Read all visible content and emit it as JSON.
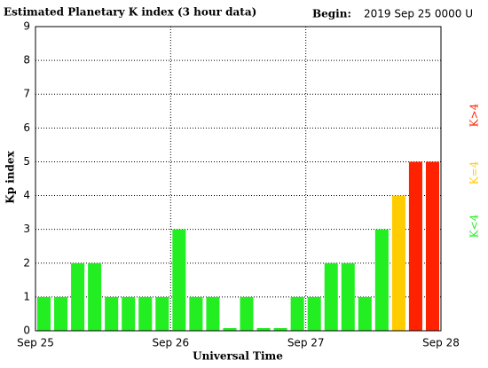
{
  "chart_data": {
    "type": "bar",
    "title": "Estimated Planetary K index (3 hour data)",
    "subtitle_label": "Begin:",
    "subtitle": "2019 Sep 25 0000 U",
    "y_label": "Kp index",
    "x_label": "Universal Time",
    "xlim": [
      0,
      24
    ],
    "xticks": [
      {
        "value": 0,
        "label": "Sep 25"
      },
      {
        "value": 8,
        "label": "Sep 26"
      },
      {
        "value": 16,
        "label": "Sep 27"
      },
      {
        "value": 24,
        "label": "Sep 28"
      }
    ],
    "ylim": [
      0,
      9
    ],
    "yticks": [
      0,
      1,
      2,
      3,
      4,
      5,
      6,
      7,
      8,
      9
    ],
    "grid": true,
    "series": [
      {
        "values": [
          1,
          1,
          2,
          2,
          1,
          1,
          1,
          1,
          3,
          1,
          1,
          0,
          1,
          0,
          0,
          1,
          1,
          2,
          2,
          1,
          3,
          4,
          5,
          5
        ],
        "colors": [
          "#22ee22",
          "#22ee22",
          "#22ee22",
          "#22ee22",
          "#22ee22",
          "#22ee22",
          "#22ee22",
          "#22ee22",
          "#22ee22",
          "#22ee22",
          "#22ee22",
          "#22ee22",
          "#22ee22",
          "#22ee22",
          "#22ee22",
          "#22ee22",
          "#22ee22",
          "#22ee22",
          "#22ee22",
          "#22ee22",
          "#22ee22",
          "#ffcc00",
          "#ff2200",
          "#ff2200"
        ]
      }
    ],
    "legend": [
      {
        "label": "K>4",
        "color": "#ff2200"
      },
      {
        "label": "K=4",
        "color": "#ffcc00"
      },
      {
        "label": "K<4",
        "color": "#22ee22"
      }
    ]
  }
}
